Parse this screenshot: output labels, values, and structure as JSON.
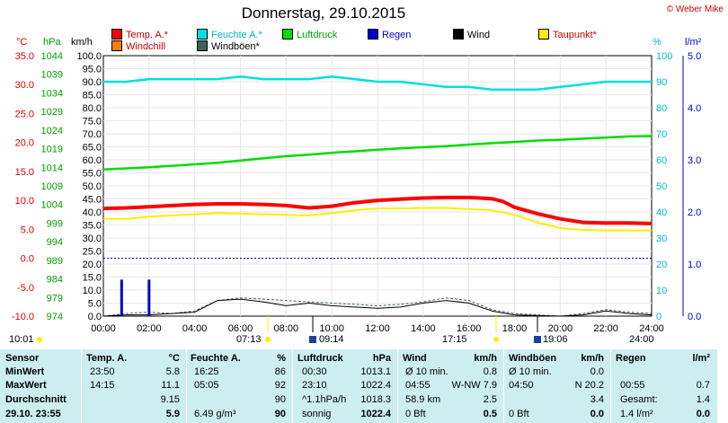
{
  "title": "Donnerstag, 29.10.2015",
  "copyright": "© Weber Mike",
  "colors": {
    "temp": "#ff0000",
    "humidity": "#00e0e0",
    "pressure": "#00dd00",
    "rain": "#0000cc",
    "wind": "#000000",
    "dewpoint": "#ffee00",
    "windchill": "#ff8000",
    "gust": "#406060"
  },
  "legend": [
    {
      "label": "Temp. A.*",
      "color": "#ff0000"
    },
    {
      "label": "Feuchte A.*",
      "color": "#00e0e0"
    },
    {
      "label": "Luftdruck",
      "color": "#00dd00"
    },
    {
      "label": "Regen",
      "color": "#0000cc"
    },
    {
      "label": "Wind",
      "color": "#000000"
    },
    {
      "label": "Taupunkt*",
      "color": "#ffee00"
    },
    {
      "label": "Windchill",
      "color": "#ff8000"
    },
    {
      "label": "Windböen*",
      "color": "#406060"
    }
  ],
  "axis_units": {
    "temp": "°C",
    "pressure": "hPa",
    "wind": "km/h",
    "humidity": "%",
    "rain": "l/m²"
  },
  "sun": {
    "left_time": "10:01",
    "right_time": "24:00",
    "sunrise": "07:13",
    "sunset": "17:15",
    "moonrise": "09:14",
    "moonset": "19:06"
  },
  "chart_data": {
    "type": "line",
    "x_unit": "hours",
    "xlim": [
      0,
      24
    ],
    "x_ticks": [
      "00:00",
      "02:00",
      "04:00",
      "06:00",
      "08:00",
      "10:00",
      "12:00",
      "14:00",
      "16:00",
      "18:00",
      "20:00",
      "22:00",
      "24:00"
    ],
    "axes": {
      "temp": {
        "range": [
          -10,
          35
        ],
        "ticks": [
          "35.0",
          "30.0",
          "25.0",
          "20.0",
          "15.0",
          "10.0",
          "5.0",
          "0.0",
          "-5.0",
          "-10.0"
        ]
      },
      "pressure": {
        "range": [
          974,
          1044
        ],
        "ticks": [
          "1044",
          "1039",
          "1034",
          "1029",
          "1024",
          "1019",
          "1014",
          "1009",
          "1004",
          "999",
          "994",
          "989",
          "984",
          "979",
          "974"
        ]
      },
      "wind": {
        "range": [
          0,
          100
        ],
        "ticks": [
          "100.0",
          "95.0",
          "90.0",
          "85.0",
          "80.0",
          "75.0",
          "70.0",
          "65.0",
          "60.0",
          "55.0",
          "50.0",
          "45.0",
          "40.0",
          "35.0",
          "30.0",
          "25.0",
          "20.0",
          "15.0",
          "10.0",
          "5.0",
          "0.0"
        ]
      },
      "humidity": {
        "range": [
          0,
          100
        ],
        "ticks": [
          "100",
          "90",
          "80",
          "70",
          "60",
          "50",
          "40",
          "30",
          "20",
          "10",
          "0"
        ]
      },
      "rain": {
        "range": [
          0,
          5
        ],
        "ticks": [
          "5.0",
          "4.0",
          "3.0",
          "2.0",
          "1.0",
          "0.0"
        ]
      }
    },
    "series": [
      {
        "name": "Temp. A.*",
        "axis": "temp",
        "x": [
          0,
          1,
          2,
          3,
          4,
          5,
          6,
          7,
          8,
          9,
          10,
          11,
          12,
          13,
          14,
          15,
          16,
          17,
          17.5,
          18,
          19,
          20,
          21,
          22,
          23,
          24
        ],
        "values": [
          8.6,
          8.7,
          8.9,
          9.1,
          9.3,
          9.4,
          9.4,
          9.3,
          9.1,
          8.7,
          9.0,
          9.6,
          10.0,
          10.2,
          10.4,
          10.5,
          10.5,
          10.3,
          9.8,
          8.8,
          7.7,
          6.8,
          6.2,
          6.1,
          6.1,
          6.0
        ]
      },
      {
        "name": "Taupunkt*",
        "axis": "temp",
        "x": [
          0,
          1,
          2,
          3,
          4,
          5,
          6,
          7,
          8,
          9,
          10,
          11,
          12,
          13,
          14,
          15,
          16,
          17,
          18,
          19,
          20,
          21,
          22,
          23,
          24
        ],
        "values": [
          6.8,
          6.8,
          7.2,
          7.4,
          7.6,
          7.8,
          7.7,
          7.6,
          7.5,
          7.4,
          7.8,
          8.3,
          8.6,
          8.6,
          8.7,
          8.7,
          8.5,
          8.3,
          7.5,
          6.2,
          5.2,
          4.9,
          4.8,
          4.8,
          4.8
        ]
      },
      {
        "name": "Feuchte A.*",
        "axis": "humidity",
        "x": [
          0,
          1,
          2,
          3,
          4,
          5,
          6,
          7,
          8,
          9,
          10,
          11,
          12,
          13,
          14,
          15,
          16,
          17,
          18,
          19,
          20,
          21,
          22,
          23,
          24
        ],
        "values": [
          90,
          90,
          91,
          91,
          91,
          91,
          92,
          91,
          91,
          91,
          92,
          91,
          90,
          90,
          89,
          88,
          88,
          87,
          87,
          87,
          88,
          89,
          90,
          90,
          90
        ]
      },
      {
        "name": "Luftdruck",
        "axis": "pressure",
        "x": [
          0,
          1,
          2,
          3,
          4,
          5,
          6,
          7,
          8,
          9,
          10,
          11,
          12,
          13,
          14,
          15,
          16,
          17,
          18,
          19,
          20,
          21,
          22,
          23,
          24
        ],
        "values": [
          1013.4,
          1013.7,
          1014.0,
          1014.4,
          1014.8,
          1015.2,
          1015.8,
          1016.4,
          1017.0,
          1017.4,
          1017.9,
          1018.3,
          1018.7,
          1019.1,
          1019.4,
          1019.7,
          1020.1,
          1020.5,
          1020.8,
          1021.2,
          1021.4,
          1021.7,
          1022.0,
          1022.3,
          1022.4
        ]
      },
      {
        "name": "Wind",
        "axis": "wind",
        "x": [
          0,
          1,
          2,
          3,
          4,
          5,
          6,
          7,
          8,
          9,
          10,
          11,
          12,
          13,
          14,
          15,
          16,
          17,
          18,
          19,
          20,
          21,
          22,
          23,
          24
        ],
        "values": [
          0,
          0.5,
          0.5,
          1,
          1.5,
          6,
          6.5,
          5.5,
          4,
          5,
          4,
          3.5,
          3,
          3.5,
          5,
          6,
          5,
          2,
          0.5,
          0.2,
          0,
          0.5,
          2,
          1,
          0.5
        ]
      },
      {
        "name": "Windböen*",
        "axis": "wind",
        "x": [
          0,
          1,
          2,
          3,
          4,
          5,
          6,
          7,
          8,
          9,
          10,
          11,
          12,
          13,
          14,
          15,
          16,
          17,
          18,
          19,
          20,
          21,
          22,
          23,
          24
        ],
        "values": [
          0,
          1,
          1.5,
          1,
          2,
          6,
          7,
          6.5,
          6,
          5.5,
          5,
          4.5,
          4,
          4.5,
          5.5,
          7,
          6,
          2.5,
          1,
          0.5,
          0,
          1,
          2.5,
          1.5,
          1
        ]
      },
      {
        "name": "Regen",
        "axis": "rain",
        "type": "bar",
        "x": [
          0.8,
          2.0
        ],
        "values": [
          0.7,
          0.7
        ]
      }
    ]
  },
  "table": {
    "headers": [
      "Sensor",
      "Temp. A.",
      "°C",
      "Feuchte A.",
      "%",
      "Luftdruck",
      "hPa",
      "Wind",
      "km/h",
      "Windböen",
      "km/h",
      "Regen",
      "l/m²"
    ],
    "rows": [
      {
        "label": "MinWert",
        "temp_time": "23:50",
        "temp_val": "5.8",
        "hum_time": "16:25",
        "hum_val": "86",
        "press_time": "00:30",
        "press_val": "1013.1",
        "wind_desc": "Ø 10 min.",
        "wind_val": "0.8",
        "gust_desc": "Ø 10 min.",
        "gust_val": "0.0",
        "rain_desc": "",
        "rain_val": ""
      },
      {
        "label": "MaxWert",
        "temp_time": "14:15",
        "temp_val": "11.1",
        "hum_time": "05:05",
        "hum_val": "92",
        "press_time": "23:10",
        "press_val": "1022.4",
        "wind_desc": "04:55",
        "wind_val": "W-NW 7.9",
        "gust_desc": "04:50",
        "gust_val": "N 20.2",
        "rain_desc": "00:55",
        "rain_val": "0.7"
      },
      {
        "label": "Durchschnitt",
        "temp_time": "",
        "temp_val": "9.15",
        "hum_time": "",
        "hum_val": "90",
        "press_time": "^1.1hPa/h",
        "press_val": "1018.3",
        "wind_desc": "58.9 km",
        "wind_val": "2.5",
        "gust_desc": "",
        "gust_val": "3.4",
        "rain_desc": "Gesamt:",
        "rain_val": "1.4"
      },
      {
        "label": "29.10. 23:55",
        "temp_time": "",
        "temp_val": "5.9",
        "hum_time": "6.49 g/m³",
        "hum_val": "90",
        "press_time": "sonnig",
        "press_val": "1022.4",
        "wind_desc": "0 Bft",
        "wind_val": "0.5",
        "gust_desc": "0 Bft",
        "gust_val": "0.0",
        "rain_desc": "1.4 l/m²",
        "rain_val": "0.0"
      }
    ]
  }
}
